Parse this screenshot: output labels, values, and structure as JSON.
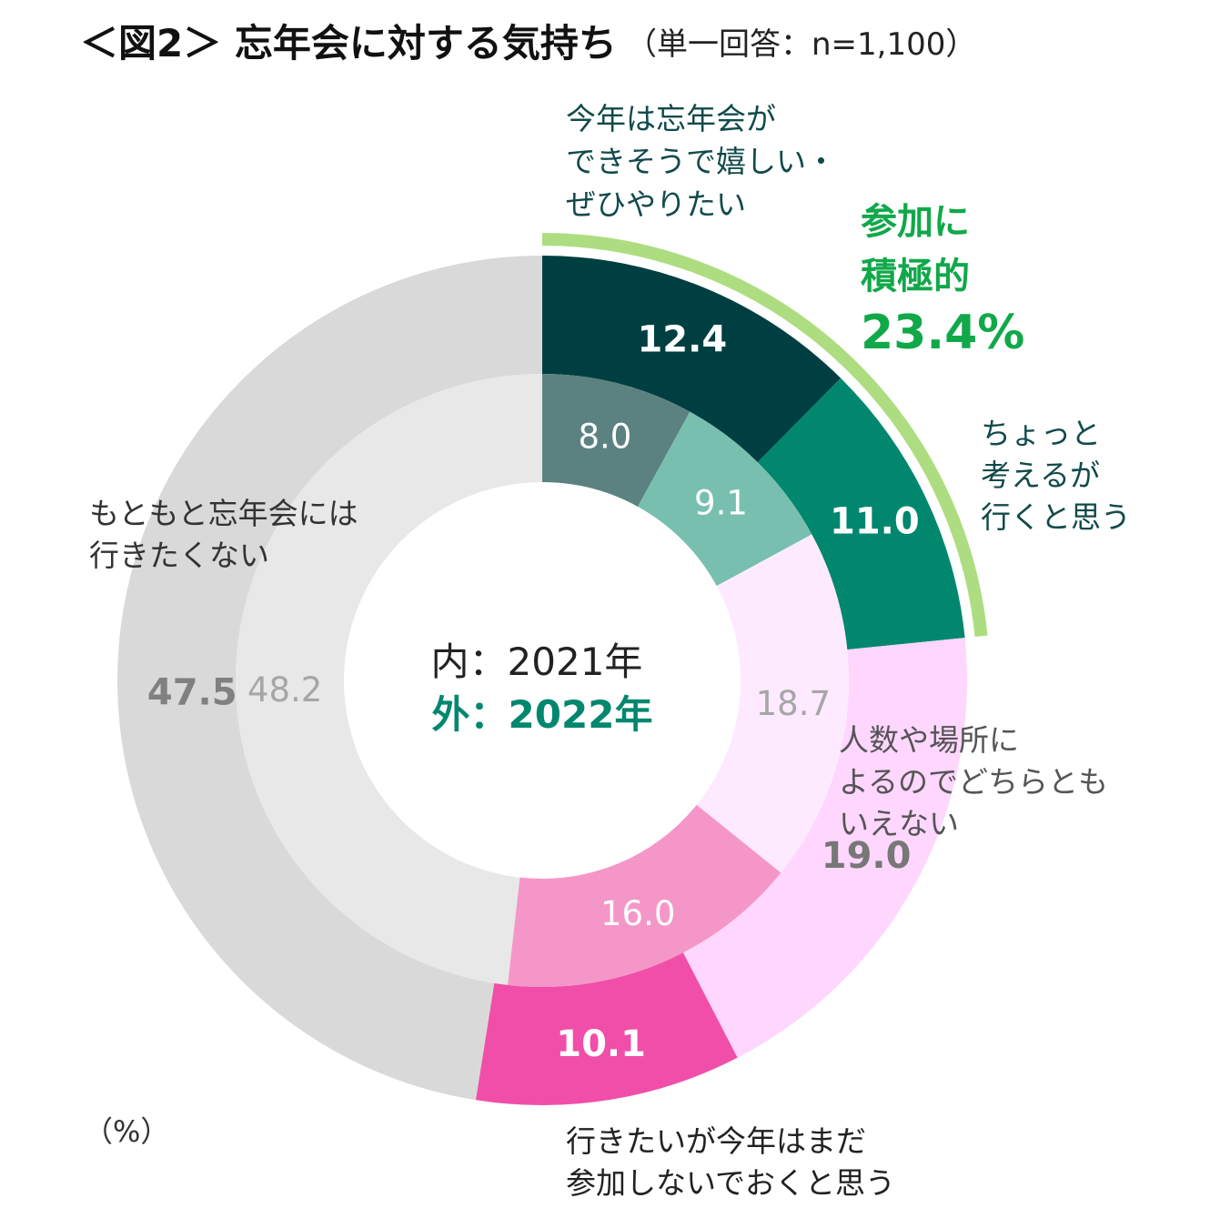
{
  "title": "＜図2＞ 忘年会に対する気持ち",
  "subtitle": "（単一回答：n=1,100）",
  "unit_label": "（%）",
  "center": {
    "inner_label": "内：2021年",
    "outer_label": "外：2022年"
  },
  "highlight": {
    "line1": "参加に",
    "line2": "積極的",
    "value": "23.4%",
    "color": "#11a84a",
    "arc_color": "#addd80"
  },
  "chart_data": {
    "type": "donut",
    "title": "＜図2＞ 忘年会に対する気持ち",
    "subtitle": "（単一回答：n=1,100）",
    "unit": "%",
    "series": [
      {
        "name": "2021年",
        "ring": "inner",
        "label": "内：2021年",
        "values": [
          8.0,
          9.1,
          18.7,
          16.0,
          48.2
        ]
      },
      {
        "name": "2022年",
        "ring": "outer",
        "label": "外：2022年",
        "values": [
          12.4,
          11.0,
          19.0,
          10.1,
          47.5
        ]
      }
    ],
    "categories": [
      "今年は忘年会ができそうで嬉しい・ぜひやりたい",
      "ちょっと考えるが行くと思う",
      "人数や場所によるのでどちらともいえない",
      "行きたいが今年はまだ参加しないでおくと思う",
      "もともと忘年会には行きたくない"
    ],
    "category_label_lines": [
      [
        "今年は忘年会が",
        "できそうで嬉しい・",
        "ぜひやりたい"
      ],
      [
        "ちょっと",
        "考えるが",
        "行くと思う"
      ],
      [
        "人数や場所に",
        "よるのでどちらとも",
        "いえない"
      ],
      [
        "行きたいが今年はまだ",
        "参加しないでおくと思う"
      ],
      [
        "もともと忘年会には",
        "行きたくない"
      ]
    ],
    "inner_value_labels": [
      "8.0",
      "9.1",
      "18.7",
      "16.0",
      "48.2"
    ],
    "outer_value_labels": [
      "12.4",
      "11.0",
      "19.0",
      "10.1",
      "47.5"
    ],
    "inner_colors": [
      "#5b8280",
      "#78bfb0",
      "#feeafe",
      "#f596c8",
      "#e8e8e8"
    ],
    "outer_colors": [
      "#003f41",
      "#00876e",
      "#fed6fe",
      "#f04ea9",
      "#d9d9d9"
    ],
    "inner_label_colors": [
      "#ffffff",
      "#ffffff",
      "#a6a6a6",
      "#ffffff",
      "#a6a6a6"
    ],
    "outer_label_colors": [
      "#ffffff",
      "#ffffff",
      "#777777",
      "#ffffff",
      "#808080"
    ],
    "category_label_colors": [
      "#124a4a",
      "#124a4a",
      "#555555",
      "#222222",
      "#333333"
    ],
    "start_angle": "12 o'clock",
    "direction": "clockwise",
    "legend": "none",
    "highlight_categories": [
      0,
      1
    ],
    "highlight_total": 23.4
  }
}
